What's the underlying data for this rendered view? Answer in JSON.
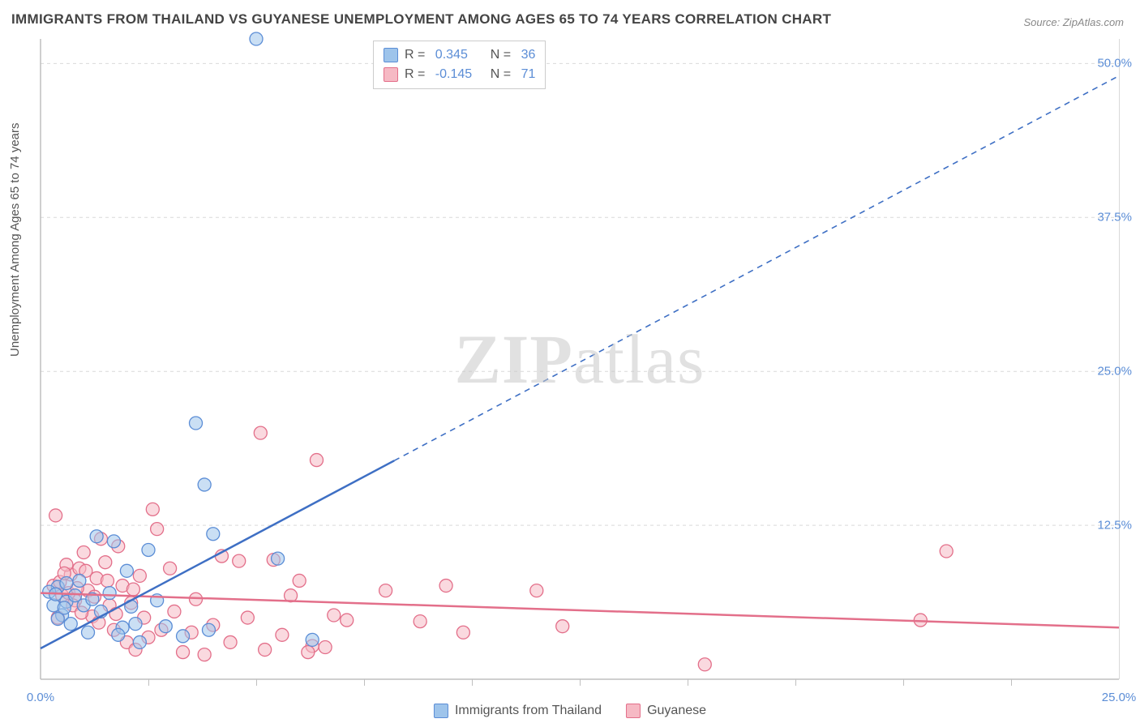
{
  "title": "IMMIGRANTS FROM THAILAND VS GUYANESE UNEMPLOYMENT AMONG AGES 65 TO 74 YEARS CORRELATION CHART",
  "source": "Source: ZipAtlas.com",
  "ylabel": "Unemployment Among Ages 65 to 74 years",
  "watermark_a": "ZIP",
  "watermark_b": "atlas",
  "chart": {
    "type": "scatter",
    "xlim": [
      0,
      25
    ],
    "ylim": [
      0,
      52
    ],
    "xtick_labels": [
      "0.0%",
      "25.0%"
    ],
    "xtick_positions": [
      0,
      25
    ],
    "xtick_minor": [
      2.5,
      5,
      7.5,
      10,
      12.5,
      15,
      17.5,
      20,
      22.5
    ],
    "ytick_labels": [
      "12.5%",
      "25.0%",
      "37.5%",
      "50.0%"
    ],
    "ytick_positions": [
      12.5,
      25,
      37.5,
      50
    ],
    "background_color": "#ffffff",
    "grid_color": "#d9d9d9",
    "series": [
      {
        "name": "Immigrants from Thailand",
        "color_fill": "#9ec4eb",
        "color_stroke": "#5b8dd6",
        "marker_radius": 8,
        "R": "0.345",
        "N": "36",
        "trend": {
          "x1": 0,
          "y1": 2.5,
          "x2": 25,
          "y2": 49.0,
          "solid_until_x": 8.2,
          "color": "#3e6fc4",
          "width": 2.5
        },
        "points": [
          [
            5.0,
            52.0
          ],
          [
            3.6,
            20.8
          ],
          [
            3.8,
            15.8
          ],
          [
            1.3,
            11.6
          ],
          [
            1.7,
            11.2
          ],
          [
            2.0,
            8.8
          ],
          [
            5.5,
            9.8
          ],
          [
            0.4,
            7.5
          ],
          [
            0.6,
            6.3
          ],
          [
            0.8,
            6.8
          ],
          [
            1.0,
            6.0
          ],
          [
            1.4,
            5.5
          ],
          [
            1.9,
            4.2
          ],
          [
            2.1,
            5.9
          ],
          [
            2.5,
            10.5
          ],
          [
            2.9,
            4.3
          ],
          [
            3.3,
            3.5
          ],
          [
            3.9,
            4.0
          ],
          [
            4.0,
            11.8
          ],
          [
            0.3,
            6.0
          ],
          [
            0.5,
            5.2
          ],
          [
            1.1,
            3.8
          ],
          [
            1.6,
            7.0
          ],
          [
            0.9,
            8.0
          ],
          [
            0.7,
            4.5
          ],
          [
            2.3,
            3.0
          ],
          [
            2.7,
            6.4
          ],
          [
            0.2,
            7.1
          ],
          [
            0.6,
            7.8
          ],
          [
            1.2,
            6.5
          ],
          [
            0.4,
            4.9
          ],
          [
            1.8,
            3.6
          ],
          [
            0.35,
            6.9
          ],
          [
            0.55,
            5.8
          ],
          [
            2.2,
            4.5
          ],
          [
            6.3,
            3.2
          ]
        ]
      },
      {
        "name": "Guyanese",
        "color_fill": "#f6b9c4",
        "color_stroke": "#e36f8a",
        "marker_radius": 8,
        "R": "-0.145",
        "N": "71",
        "trend": {
          "x1": 0,
          "y1": 7.0,
          "x2": 25,
          "y2": 4.2,
          "solid_until_x": 25,
          "color": "#e36f8a",
          "width": 2.5
        },
        "points": [
          [
            0.35,
            13.3
          ],
          [
            5.1,
            20.0
          ],
          [
            6.4,
            17.8
          ],
          [
            2.6,
            13.8
          ],
          [
            2.7,
            12.2
          ],
          [
            4.2,
            10.0
          ],
          [
            4.6,
            9.6
          ],
          [
            5.4,
            9.7
          ],
          [
            6.0,
            8.0
          ],
          [
            6.3,
            2.7
          ],
          [
            6.2,
            2.2
          ],
          [
            6.6,
            2.6
          ],
          [
            7.1,
            4.8
          ],
          [
            8.0,
            7.2
          ],
          [
            8.8,
            4.7
          ],
          [
            9.4,
            7.6
          ],
          [
            9.8,
            3.8
          ],
          [
            11.5,
            7.2
          ],
          [
            12.1,
            4.3
          ],
          [
            15.4,
            1.2
          ],
          [
            21.0,
            10.4
          ],
          [
            20.4,
            4.8
          ],
          [
            0.4,
            5.0
          ],
          [
            0.5,
            6.8
          ],
          [
            0.7,
            8.5
          ],
          [
            0.9,
            9.0
          ],
          [
            1.0,
            10.3
          ],
          [
            1.1,
            7.2
          ],
          [
            1.2,
            5.1
          ],
          [
            1.3,
            8.2
          ],
          [
            1.5,
            9.5
          ],
          [
            1.6,
            6.0
          ],
          [
            1.7,
            4.0
          ],
          [
            1.8,
            10.8
          ],
          [
            1.9,
            7.6
          ],
          [
            2.0,
            3.0
          ],
          [
            2.1,
            6.2
          ],
          [
            2.2,
            2.4
          ],
          [
            2.3,
            8.4
          ],
          [
            2.4,
            5.0
          ],
          [
            2.5,
            3.4
          ],
          [
            2.8,
            4.0
          ],
          [
            3.0,
            9.0
          ],
          [
            3.1,
            5.5
          ],
          [
            3.3,
            2.2
          ],
          [
            3.5,
            3.8
          ],
          [
            3.6,
            6.5
          ],
          [
            3.8,
            2.0
          ],
          [
            4.0,
            4.4
          ],
          [
            4.4,
            3.0
          ],
          [
            4.8,
            5.0
          ],
          [
            5.2,
            2.4
          ],
          [
            5.6,
            3.6
          ],
          [
            5.8,
            6.8
          ],
          [
            6.8,
            5.2
          ],
          [
            0.3,
            7.6
          ],
          [
            0.6,
            9.3
          ],
          [
            0.8,
            6.4
          ],
          [
            1.4,
            11.4
          ],
          [
            0.45,
            7.9
          ],
          [
            0.55,
            8.6
          ],
          [
            0.65,
            7.0
          ],
          [
            0.75,
            6.0
          ],
          [
            0.85,
            7.4
          ],
          [
            0.95,
            5.4
          ],
          [
            1.05,
            8.8
          ],
          [
            1.25,
            6.7
          ],
          [
            1.35,
            4.6
          ],
          [
            1.55,
            8.0
          ],
          [
            1.75,
            5.3
          ],
          [
            2.15,
            7.3
          ]
        ]
      }
    ]
  }
}
